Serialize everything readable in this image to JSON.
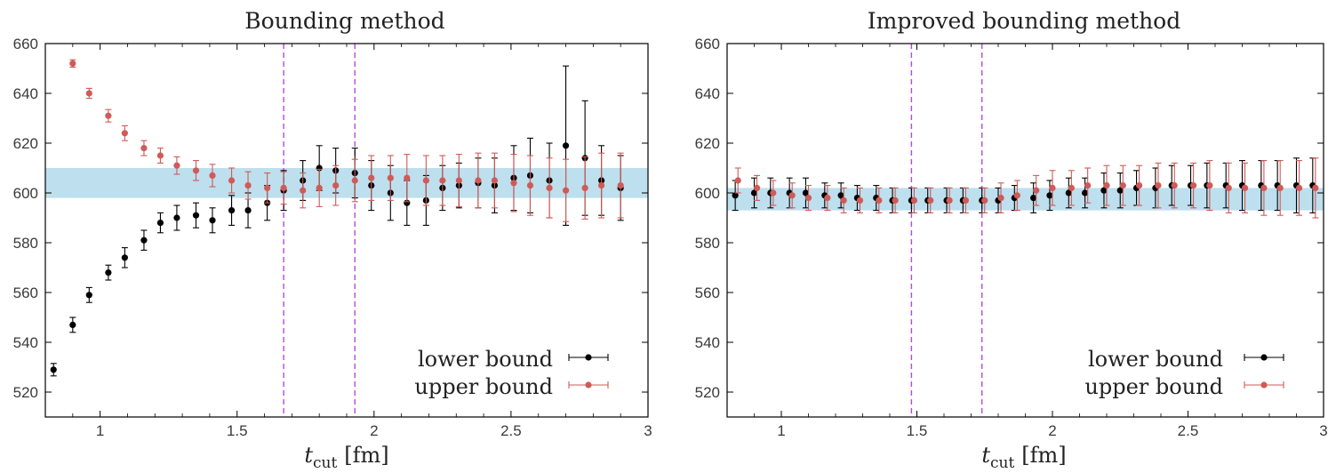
{
  "chart_data": [
    {
      "type": "scatter",
      "title": "Bounding method",
      "xlabel": {
        "symbol": "t",
        "subscript": "cut",
        "unit": "[fm]"
      },
      "xlim": [
        0.8,
        3.0
      ],
      "ylim": [
        510,
        660
      ],
      "xticks": [
        1,
        1.5,
        2,
        2.5,
        3
      ],
      "xtick_labels": [
        "1",
        "1.5",
        "2",
        "2.5",
        "3"
      ],
      "yticks": [
        520,
        540,
        560,
        580,
        600,
        620,
        640,
        660
      ],
      "ytick_labels": [
        "520",
        "540",
        "560",
        "580",
        "600",
        "620",
        "640",
        "660"
      ],
      "band": {
        "lo": 598,
        "hi": 610,
        "color": "#b3d9ea"
      },
      "vlines": [
        1.67,
        1.93
      ],
      "vline_color": "#b24bdc",
      "legend": {
        "location": "bottom-right",
        "entries": [
          "lower bound",
          "upper bound"
        ]
      },
      "series": [
        {
          "name": "lower bound",
          "color": "#000000",
          "x": [
            0.83,
            0.9,
            0.96,
            1.03,
            1.09,
            1.16,
            1.22,
            1.28,
            1.35,
            1.41,
            1.48,
            1.54,
            1.61,
            1.67,
            1.74,
            1.8,
            1.86,
            1.93,
            1.99,
            2.06,
            2.12,
            2.19,
            2.25,
            2.31,
            2.38,
            2.44,
            2.51,
            2.57,
            2.64,
            2.7,
            2.77,
            2.83,
            2.9
          ],
          "y": [
            529,
            547,
            559,
            568,
            574,
            581,
            588,
            590,
            591,
            589,
            593,
            593,
            596,
            601,
            605,
            610,
            609,
            608,
            603,
            600,
            596,
            597,
            602,
            603,
            604,
            603,
            606,
            607,
            605,
            619,
            614,
            605,
            602
          ],
          "err": [
            2.5,
            3,
            3,
            3,
            4,
            4,
            4,
            5,
            5,
            5,
            6,
            7,
            7,
            8,
            8,
            9,
            9,
            10,
            10,
            11,
            9,
            10,
            9,
            9,
            10,
            11,
            13,
            15,
            15,
            32,
            23,
            14,
            13
          ]
        },
        {
          "name": "upper bound",
          "color": "#d05a57",
          "x": [
            0.83,
            0.9,
            0.96,
            1.03,
            1.09,
            1.16,
            1.22,
            1.28,
            1.35,
            1.41,
            1.48,
            1.54,
            1.61,
            1.67,
            1.74,
            1.8,
            1.86,
            1.93,
            1.99,
            2.06,
            2.12,
            2.19,
            2.25,
            2.31,
            2.38,
            2.44,
            2.51,
            2.57,
            2.64,
            2.7,
            2.77,
            2.83,
            2.9
          ],
          "y": [
            null,
            652,
            640,
            631,
            624,
            618,
            615,
            611,
            609,
            607,
            605,
            603,
            602,
            602,
            601,
            602,
            603,
            605,
            606,
            606,
            606,
            605,
            605,
            605,
            605,
            605,
            604,
            603,
            602,
            601,
            602,
            603,
            603
          ],
          "err": [
            0,
            1.5,
            2,
            2.5,
            3,
            3,
            3,
            3.5,
            4,
            4.5,
            5,
            5.5,
            6,
            6.5,
            7,
            7.5,
            8,
            8.5,
            9,
            9,
            9.5,
            10,
            10,
            10.5,
            11,
            11,
            11.5,
            12,
            12,
            12.5,
            12.5,
            13,
            13
          ]
        }
      ]
    },
    {
      "type": "scatter",
      "title": "Improved bounding method",
      "xlabel": {
        "symbol": "t",
        "subscript": "cut",
        "unit": "[fm]"
      },
      "xlim": [
        0.8,
        3.0
      ],
      "ylim": [
        510,
        660
      ],
      "xticks": [
        1,
        1.5,
        2,
        2.5,
        3
      ],
      "xtick_labels": [
        "1",
        "1.5",
        "2",
        "2.5",
        "3"
      ],
      "yticks": [
        520,
        540,
        560,
        580,
        600,
        620,
        640,
        660
      ],
      "ytick_labels": [
        "520",
        "540",
        "560",
        "580",
        "600",
        "620",
        "640",
        "660"
      ],
      "band": {
        "lo": 593,
        "hi": 602,
        "color": "#b3d9ea"
      },
      "vlines": [
        1.48,
        1.74
      ],
      "vline_color": "#b24bdc",
      "legend": {
        "location": "bottom-right",
        "entries": [
          "lower bound",
          "upper bound"
        ]
      },
      "series": [
        {
          "name": "lower bound",
          "color": "#000000",
          "x": [
            0.83,
            0.9,
            0.96,
            1.03,
            1.09,
            1.16,
            1.22,
            1.28,
            1.35,
            1.41,
            1.48,
            1.54,
            1.61,
            1.67,
            1.74,
            1.8,
            1.86,
            1.93,
            1.99,
            2.06,
            2.12,
            2.19,
            2.25,
            2.31,
            2.38,
            2.44,
            2.51,
            2.57,
            2.64,
            2.7,
            2.77,
            2.83,
            2.9,
            2.96
          ],
          "y": [
            599,
            600,
            600,
            600,
            600,
            599,
            599,
            598,
            598,
            597,
            597,
            597,
            597,
            597,
            597,
            597,
            598,
            598,
            599,
            600,
            600,
            601,
            601,
            602,
            602,
            603,
            603,
            603,
            603,
            603,
            603,
            603,
            603,
            603
          ],
          "err": [
            6,
            6,
            6,
            6,
            6,
            5,
            5,
            5,
            5,
            5,
            5,
            5,
            5,
            5,
            5,
            5,
            5,
            6,
            6,
            6,
            6,
            7,
            7,
            7,
            8,
            8,
            8,
            9,
            9,
            10,
            10,
            10,
            11,
            11
          ]
        },
        {
          "name": "upper bound",
          "color": "#d05a57",
          "x": [
            0.84,
            0.91,
            0.97,
            1.04,
            1.1,
            1.17,
            1.23,
            1.29,
            1.36,
            1.42,
            1.49,
            1.55,
            1.62,
            1.68,
            1.75,
            1.81,
            1.87,
            1.94,
            2.0,
            2.07,
            2.13,
            2.2,
            2.26,
            2.32,
            2.39,
            2.45,
            2.52,
            2.58,
            2.65,
            2.71,
            2.78,
            2.84,
            2.91,
            2.97
          ],
          "y": [
            605,
            602,
            600,
            599,
            598,
            598,
            597,
            597,
            597,
            597,
            597,
            597,
            597,
            597,
            597,
            598,
            599,
            601,
            602,
            602,
            603,
            603,
            603,
            603,
            603,
            603,
            603,
            603,
            602,
            602,
            602,
            602,
            602,
            602
          ],
          "err": [
            5,
            5,
            5,
            5,
            5,
            5,
            5,
            5,
            5,
            5,
            5,
            5,
            5,
            5,
            5,
            6,
            6,
            6,
            7,
            7,
            7,
            8,
            8,
            8,
            9,
            9,
            9,
            10,
            10,
            10,
            11,
            11,
            11,
            12
          ]
        }
      ]
    }
  ]
}
